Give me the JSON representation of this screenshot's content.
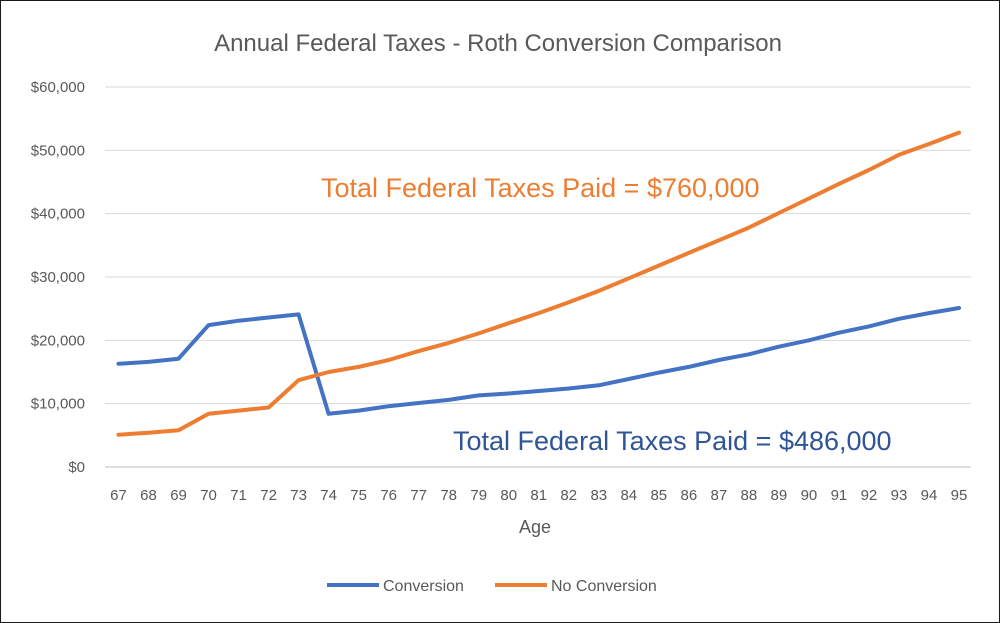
{
  "chart_data": {
    "type": "line",
    "title": "Annual Federal Taxes - Roth Conversion Comparison",
    "xlabel": "Age",
    "ylabel": "",
    "x": [
      67,
      68,
      69,
      70,
      71,
      72,
      73,
      74,
      75,
      76,
      77,
      78,
      79,
      80,
      81,
      82,
      83,
      84,
      85,
      86,
      87,
      88,
      89,
      90,
      91,
      92,
      93,
      94,
      95
    ],
    "ylim": [
      0,
      60000
    ],
    "yticks": [
      0,
      10000,
      20000,
      30000,
      40000,
      50000,
      60000
    ],
    "ytick_labels": [
      "$0",
      "$10,000",
      "$20,000",
      "$30,000",
      "$40,000",
      "$50,000",
      "$60,000"
    ],
    "grid": true,
    "legend_position": "bottom",
    "series": [
      {
        "name": "Conversion",
        "color": "#4472C4",
        "values": [
          16300,
          16600,
          17100,
          22400,
          23100,
          23600,
          24100,
          8400,
          8900,
          9600,
          10100,
          10600,
          11300,
          11600,
          12000,
          12400,
          12900,
          13900,
          14900,
          15800,
          16900,
          17800,
          19000,
          20000,
          21200,
          22200,
          23400,
          24300,
          25100
        ]
      },
      {
        "name": "No Conversion",
        "color": "#ED7D31",
        "values": [
          5100,
          5400,
          5800,
          8400,
          8900,
          9400,
          13700,
          15000,
          15800,
          16900,
          18300,
          19600,
          21100,
          22700,
          24300,
          26000,
          27800,
          29800,
          31800,
          33800,
          35800,
          37800,
          40100,
          42400,
          44700,
          46900,
          49300,
          51000,
          52800
        ]
      }
    ],
    "annotations": [
      {
        "text": "Total Federal Taxes Paid = $760,000",
        "color": "#ED7D31"
      },
      {
        "text": "Total Federal Taxes Paid = $486,000",
        "color": "#2F5597"
      }
    ]
  }
}
